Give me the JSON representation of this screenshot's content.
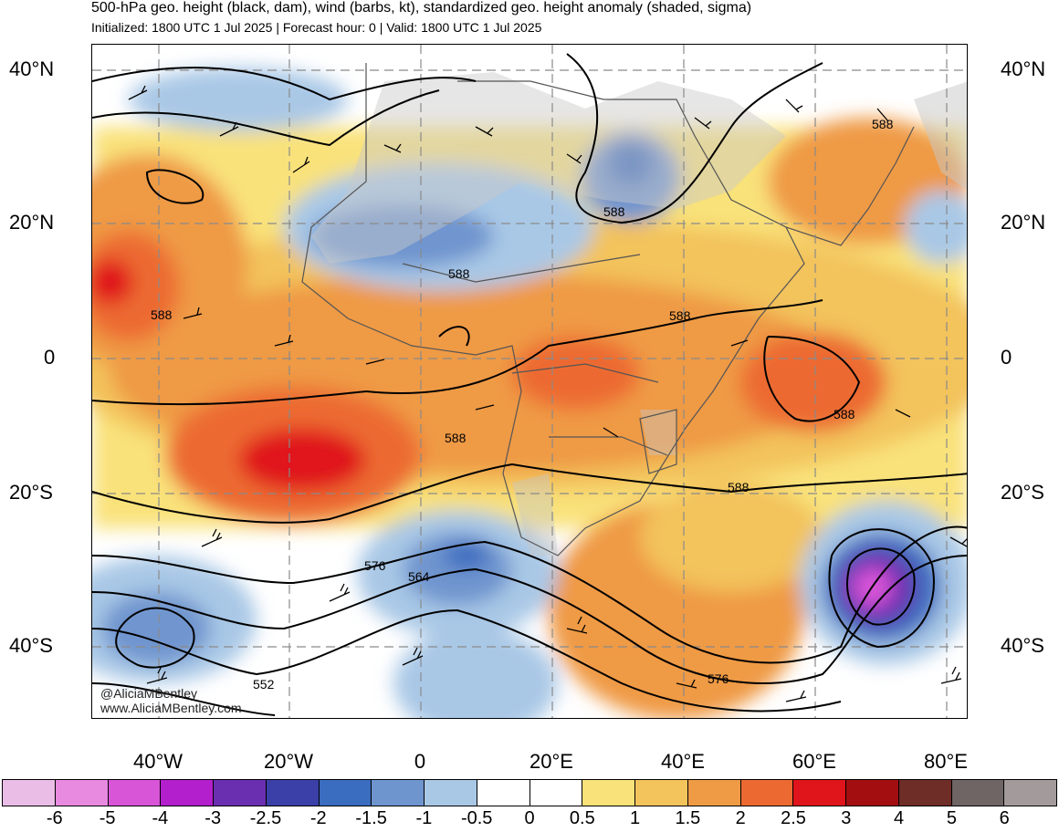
{
  "header": {
    "title": "500-hPa geo. height (black, dam), wind (barbs, kt), standardized geo. height anomaly (shaded, sigma)",
    "subtitle": "Initialized: 1800 UTC 1 Jul 2025 | Forecast hour: 0 | Valid: 1800 UTC 1 Jul 2025"
  },
  "axes": {
    "lat_labels": [
      "40°N",
      "20°N",
      "0",
      "20°S",
      "40°S"
    ],
    "lon_labels": [
      "40°W",
      "20°W",
      "0",
      "20°E",
      "40°E",
      "60°E",
      "80°E"
    ]
  },
  "contour_labels": [
    "588",
    "588",
    "588",
    "588",
    "588",
    "588",
    "588",
    "588",
    "576",
    "564",
    "576",
    "552"
  ],
  "credit": {
    "handle": "@AliciaMBentley",
    "site": "www.AliciaMBentley.com"
  },
  "colorbar": {
    "ticks": [
      "-6",
      "-5",
      "-4",
      "-3",
      "-2.5",
      "-2",
      "-1.5",
      "-1",
      "-0.5",
      "0",
      "0.5",
      "1",
      "1.5",
      "2",
      "2.5",
      "3",
      "4",
      "5",
      "6"
    ],
    "colors": [
      "#eabde6",
      "#e88ae0",
      "#d855d8",
      "#b31fcc",
      "#6a2fb0",
      "#3b3fa8",
      "#3a6cbf",
      "#6f95cf",
      "#a9c8e6",
      "#ffffff",
      "#ffffff",
      "#f9e27a",
      "#f3c35c",
      "#ef9a44",
      "#ec6a32",
      "#e0141b",
      "#a30f10",
      "#6e2d27",
      "#6f6565",
      "#a39b9b"
    ]
  },
  "map_colors": {
    "land_gray": "#c8c8c8",
    "contour": "#000000"
  }
}
